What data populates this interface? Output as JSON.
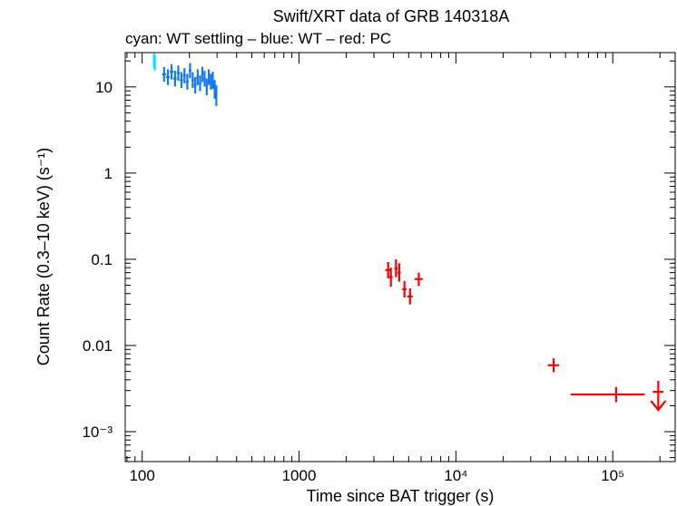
{
  "chart_data": {
    "type": "scatter",
    "title": "Swift/XRT data of GRB 140318A",
    "subtitle": "cyan: WT settling – blue: WT – red: PC",
    "xlabel": "Time since BAT trigger (s)",
    "ylabel": "Count Rate (0.3–10 keV) (s⁻¹)",
    "x_scale": "log",
    "y_scale": "log",
    "xlim": [
      78,
      250000
    ],
    "ylim": [
      0.00045,
      25
    ],
    "x_ticks": [
      {
        "value": 100,
        "label": "100"
      },
      {
        "value": 1000,
        "label": "1000"
      },
      {
        "value": 10000,
        "label": "10⁴"
      },
      {
        "value": 100000,
        "label": "10⁵"
      }
    ],
    "y_ticks": [
      {
        "value": 10,
        "label": "10"
      },
      {
        "value": 1,
        "label": "1"
      },
      {
        "value": 0.1,
        "label": "0.1"
      },
      {
        "value": 0.01,
        "label": "0.01"
      },
      {
        "value": 0.001,
        "label": "10⁻³"
      }
    ],
    "series": [
      {
        "color": "#00e5ff",
        "points": [
          {
            "x": 119,
            "y": 20.5,
            "x_lo": 117,
            "x_hi": 121,
            "y_lo": 16.5,
            "y_hi": 24.5
          },
          {
            "x": 120.5,
            "y": 19.5,
            "x_lo": 119,
            "x_hi": 122,
            "y_lo": 15.5,
            "y_hi": 23.5
          }
        ]
      },
      {
        "color": "#1478f0",
        "points": [
          {
            "x": 138,
            "y": 14.0,
            "x_lo": 134,
            "x_hi": 142,
            "y_lo": 11.5,
            "y_hi": 17.0
          },
          {
            "x": 146,
            "y": 13.0,
            "x_lo": 142,
            "x_hi": 150,
            "y_lo": 10.5,
            "y_hi": 16.0
          },
          {
            "x": 154,
            "y": 15.0,
            "x_lo": 150,
            "x_hi": 158,
            "y_lo": 12.2,
            "y_hi": 18.3
          },
          {
            "x": 162,
            "y": 12.5,
            "x_lo": 158,
            "x_hi": 166,
            "y_lo": 10.1,
            "y_hi": 15.4
          },
          {
            "x": 170,
            "y": 14.5,
            "x_lo": 166,
            "x_hi": 174,
            "y_lo": 11.8,
            "y_hi": 17.7
          },
          {
            "x": 178,
            "y": 12.0,
            "x_lo": 174,
            "x_hi": 182,
            "y_lo": 9.7,
            "y_hi": 14.8
          },
          {
            "x": 186,
            "y": 13.5,
            "x_lo": 182,
            "x_hi": 190,
            "y_lo": 11.0,
            "y_hi": 16.5
          },
          {
            "x": 194,
            "y": 11.5,
            "x_lo": 190,
            "x_hi": 198,
            "y_lo": 9.3,
            "y_hi": 14.2
          },
          {
            "x": 202,
            "y": 15.5,
            "x_lo": 198,
            "x_hi": 206,
            "y_lo": 12.6,
            "y_hi": 18.9
          },
          {
            "x": 210,
            "y": 12.0,
            "x_lo": 206,
            "x_hi": 214,
            "y_lo": 9.7,
            "y_hi": 14.8
          },
          {
            "x": 218,
            "y": 10.5,
            "x_lo": 214,
            "x_hi": 222,
            "y_lo": 8.4,
            "y_hi": 13.0
          },
          {
            "x": 226,
            "y": 13.0,
            "x_lo": 222,
            "x_hi": 230,
            "y_lo": 10.5,
            "y_hi": 16.0
          },
          {
            "x": 234,
            "y": 11.0,
            "x_lo": 230,
            "x_hi": 238,
            "y_lo": 8.9,
            "y_hi": 13.6
          },
          {
            "x": 242,
            "y": 14.0,
            "x_lo": 238,
            "x_hi": 246,
            "y_lo": 11.4,
            "y_hi": 17.1
          },
          {
            "x": 250,
            "y": 12.5,
            "x_lo": 246,
            "x_hi": 254,
            "y_lo": 10.1,
            "y_hi": 15.4
          },
          {
            "x": 258,
            "y": 10.0,
            "x_lo": 254,
            "x_hi": 262,
            "y_lo": 8.0,
            "y_hi": 12.5
          },
          {
            "x": 266,
            "y": 13.0,
            "x_lo": 262,
            "x_hi": 270,
            "y_lo": 10.5,
            "y_hi": 16.0
          },
          {
            "x": 274,
            "y": 11.5,
            "x_lo": 270,
            "x_hi": 278,
            "y_lo": 9.3,
            "y_hi": 14.2
          },
          {
            "x": 282,
            "y": 12.0,
            "x_lo": 278,
            "x_hi": 286,
            "y_lo": 9.5,
            "y_hi": 15.0
          },
          {
            "x": 290,
            "y": 9.5,
            "x_lo": 286,
            "x_hi": 294,
            "y_lo": 7.3,
            "y_hi": 12.0
          },
          {
            "x": 297,
            "y": 8.0,
            "x_lo": 294,
            "x_hi": 300,
            "y_lo": 6.0,
            "y_hi": 10.5
          }
        ]
      },
      {
        "color": "#ff0000",
        "points": [
          {
            "x": 3700,
            "y": 0.075,
            "x_lo": 3550,
            "x_hi": 3850,
            "y_lo": 0.06,
            "y_hi": 0.093
          },
          {
            "x": 3850,
            "y": 0.062,
            "x_lo": 3750,
            "x_hi": 3950,
            "y_lo": 0.048,
            "y_hi": 0.08
          },
          {
            "x": 4150,
            "y": 0.078,
            "x_lo": 4050,
            "x_hi": 4250,
            "y_lo": 0.062,
            "y_hi": 0.1
          },
          {
            "x": 4350,
            "y": 0.07,
            "x_lo": 4250,
            "x_hi": 4450,
            "y_lo": 0.055,
            "y_hi": 0.09
          },
          {
            "x": 4700,
            "y": 0.045,
            "x_lo": 4550,
            "x_hi": 4850,
            "y_lo": 0.036,
            "y_hi": 0.056
          },
          {
            "x": 5100,
            "y": 0.037,
            "x_lo": 4900,
            "x_hi": 5300,
            "y_lo": 0.03,
            "y_hi": 0.046
          },
          {
            "x": 5800,
            "y": 0.059,
            "x_lo": 5450,
            "x_hi": 6150,
            "y_lo": 0.049,
            "y_hi": 0.07
          },
          {
            "x": 42000,
            "y": 0.0059,
            "x_lo": 38500,
            "x_hi": 45500,
            "y_lo": 0.0049,
            "y_hi": 0.0071
          },
          {
            "x": 105000,
            "y": 0.0027,
            "x_lo": 54000,
            "x_hi": 160000,
            "y_lo": 0.0022,
            "y_hi": 0.0033
          },
          {
            "x": 195000,
            "y": 0.0029,
            "x_lo": 180000,
            "x_hi": 210000,
            "upper_limit": true
          }
        ]
      }
    ]
  }
}
